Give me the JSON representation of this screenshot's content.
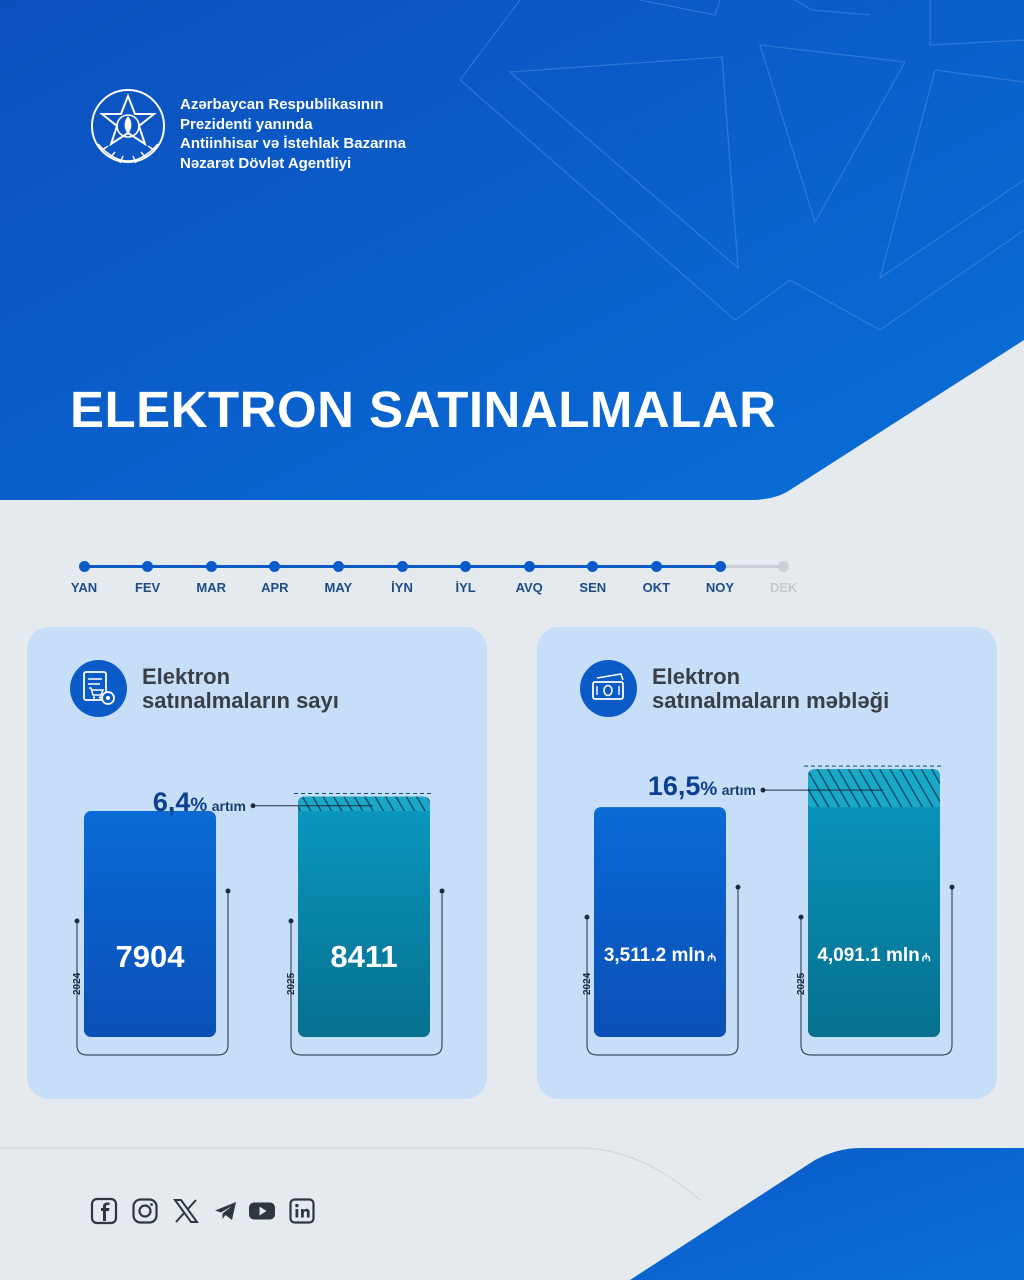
{
  "header": {
    "org_lines": [
      "Azərbaycan Respublikasının",
      "Prezidenti yanında",
      "Antiinhisar və İstehlak Bazarına",
      "Nəzarət Dövlət Agentliyi"
    ],
    "title": "ELEKTRON SATINALMALAR",
    "logo_icon": "state-emblem-icon"
  },
  "colors": {
    "primary": "#0a5bc8",
    "teal": "#0a8fb8",
    "card_bg": "#c7def8",
    "page_bg": "#e4eaed"
  },
  "timeline": {
    "months": [
      "YAN",
      "FEV",
      "MAR",
      "APR",
      "MAY",
      "İYN",
      "İYL",
      "AVQ",
      "SEN",
      "OKT",
      "NOY",
      "DEK"
    ],
    "active_count": 11
  },
  "cards": [
    {
      "title_lines": [
        "Elektron",
        "satınalmaların sayı"
      ],
      "icon": "cart-document-gear-icon"
    },
    {
      "title_lines": [
        "Elektron",
        "satınalmaların məbləği"
      ],
      "icon": "money-bill-icon"
    }
  ],
  "chart_data": [
    {
      "type": "bar",
      "categories": [
        "2024",
        "2025"
      ],
      "values": [
        7904,
        8411
      ],
      "value_labels": [
        "7904",
        "8411"
      ],
      "growth": {
        "number": "6,4",
        "percent_sign": "%",
        "word": "artım"
      }
    },
    {
      "type": "bar",
      "categories": [
        "2024",
        "2025"
      ],
      "values": [
        3511.2,
        4091.1
      ],
      "value_labels": [
        "3,511.2 mln",
        "4,091.1 mln"
      ],
      "unit_symbol": "₼",
      "growth": {
        "number": "16,5",
        "percent_sign": "%",
        "word": "artım"
      }
    }
  ],
  "footer": {
    "social_icons": [
      "facebook-icon",
      "instagram-icon",
      "x-icon",
      "telegram-icon",
      "youtube-icon",
      "linkedin-icon"
    ]
  }
}
